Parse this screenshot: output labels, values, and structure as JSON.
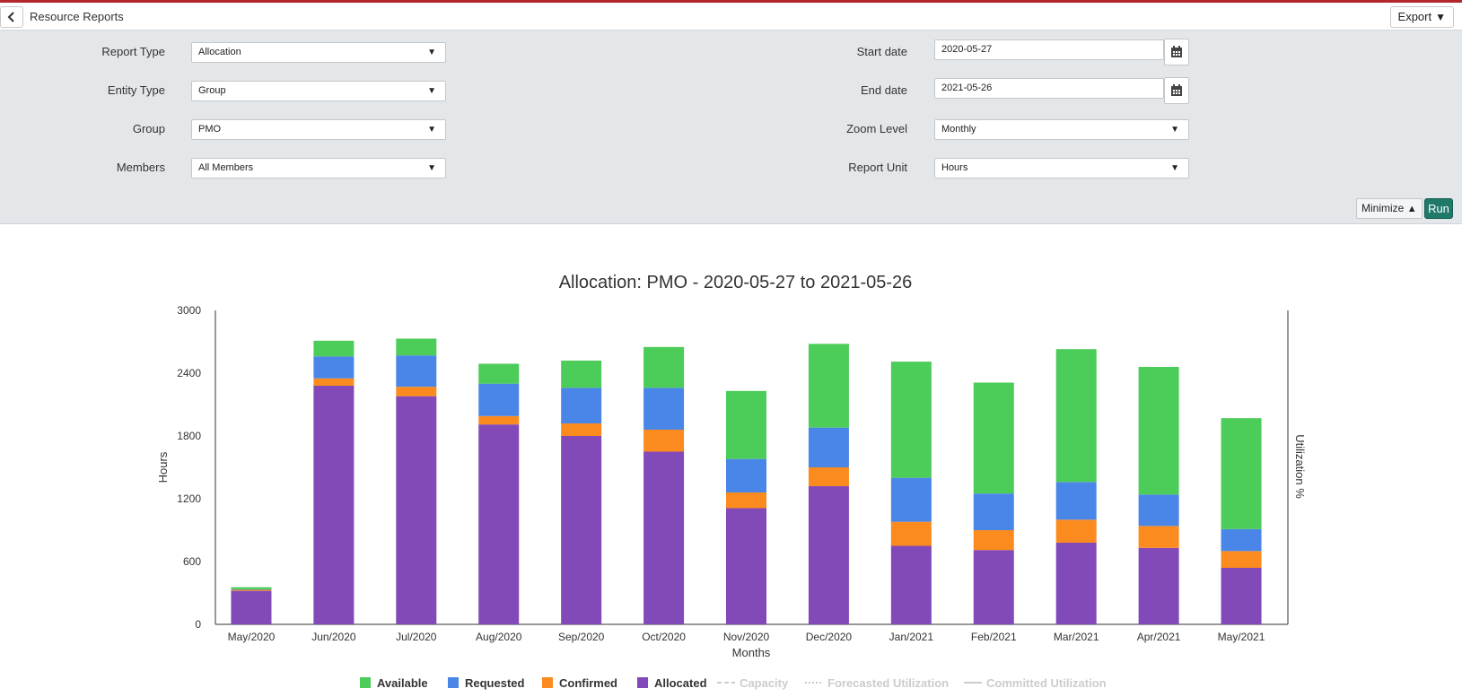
{
  "header": {
    "title": "Resource Reports",
    "export_label": "Export"
  },
  "form": {
    "report_type": {
      "label": "Report Type",
      "value": "Allocation"
    },
    "entity_type": {
      "label": "Entity Type",
      "value": "Group"
    },
    "group": {
      "label": "Group",
      "value": "PMO"
    },
    "members": {
      "label": "Members",
      "value": "All Members"
    },
    "start_date": {
      "label": "Start date",
      "value": "2020-05-27"
    },
    "end_date": {
      "label": "End date",
      "value": "2021-05-26"
    },
    "zoom_level": {
      "label": "Zoom Level",
      "value": "Monthly"
    },
    "report_unit": {
      "label": "Report Unit",
      "value": "Hours"
    },
    "minimize_label": "Minimize",
    "run_label": "Run"
  },
  "chart_data": {
    "type": "bar",
    "stacked": true,
    "title": "Allocation: PMO - 2020-05-27 to 2021-05-26",
    "xlabel": "Months",
    "ylabel": "Hours",
    "y2label": "Utilization %",
    "ylim": [
      0,
      3000
    ],
    "yticks": [
      0,
      600,
      1200,
      1800,
      2400,
      3000
    ],
    "categories": [
      "May/2020",
      "Jun/2020",
      "Jul/2020",
      "Aug/2020",
      "Sep/2020",
      "Oct/2020",
      "Nov/2020",
      "Dec/2020",
      "Jan/2021",
      "Feb/2021",
      "Mar/2021",
      "Apr/2021",
      "May/2021"
    ],
    "series": [
      {
        "name": "Allocated",
        "color": "#8249b8",
        "values": [
          320,
          2280,
          2180,
          1910,
          1800,
          1650,
          1110,
          1320,
          750,
          710,
          780,
          730,
          540
        ]
      },
      {
        "name": "Confirmed",
        "color": "#fb8b1e",
        "values": [
          10,
          70,
          90,
          80,
          120,
          210,
          150,
          180,
          230,
          190,
          220,
          210,
          160
        ]
      },
      {
        "name": "Requested",
        "color": "#4a86e8",
        "values": [
          5,
          210,
          300,
          310,
          340,
          400,
          320,
          380,
          420,
          350,
          360,
          300,
          210
        ]
      },
      {
        "name": "Available",
        "color": "#4ccc58",
        "values": [
          20,
          150,
          160,
          190,
          260,
          390,
          650,
          800,
          1110,
          1060,
          1270,
          1220,
          1060
        ]
      }
    ],
    "legend": {
      "position": "bottom",
      "items": [
        {
          "name": "Available",
          "color": "#4ccc58",
          "kind": "box",
          "active": true
        },
        {
          "name": "Requested",
          "color": "#4a86e8",
          "kind": "box",
          "active": true
        },
        {
          "name": "Confirmed",
          "color": "#fb8b1e",
          "kind": "box",
          "active": true
        },
        {
          "name": "Allocated",
          "color": "#8249b8",
          "kind": "box",
          "active": true
        },
        {
          "name": "Capacity",
          "color": "#cccccc",
          "kind": "dash",
          "active": false
        },
        {
          "name": "Forecasted Utilization",
          "color": "#cccccc",
          "kind": "dot",
          "active": false
        },
        {
          "name": "Committed Utilization",
          "color": "#cccccc",
          "kind": "solid",
          "active": false
        }
      ]
    }
  }
}
